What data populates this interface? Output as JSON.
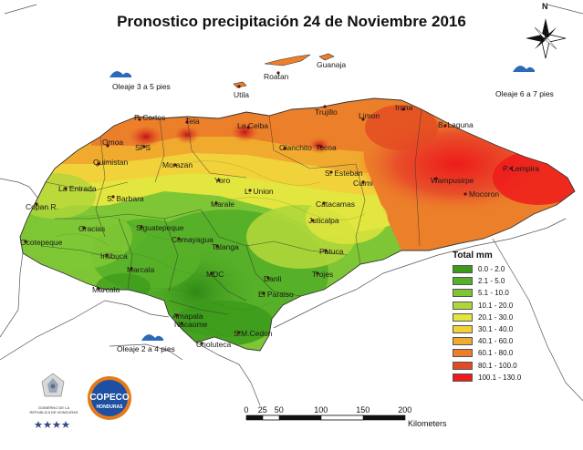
{
  "title": "Pronostico precipitación 24 de Noviembre 2016",
  "wave_labels": {
    "west": "Oleaje 3 a 5 pies",
    "east": "Oleaje 6 a 7 pies",
    "south": "Oleaje 2 a 4 pies"
  },
  "places": {
    "roatan": "Roatan",
    "guanaja": "Guanaja",
    "utila": "Utila",
    "trujillo": "Trujillo",
    "limon": "Limon",
    "pcortes": "P. Cortes",
    "tela": "Tela",
    "laceiba": "La Ceiba",
    "irona": "Irona",
    "blaguna": "B. Laguna",
    "omoa": "Omoa",
    "sps": "SPS",
    "olanchito": "Olanchito",
    "tocoa": "Tocoa",
    "plempira": "P. Lempira",
    "quimistan": "Quimistan",
    "morazan": "Morazan",
    "sesteban": "S. Esteban",
    "culmi": "Culmi",
    "wampusirpe": "Wampusirpe",
    "laentrada": "La Entrada",
    "yoro": "Yoro",
    "lunion": "L. Union",
    "mocoron": "Mocoron",
    "sbarbara": "S. Barbara",
    "marale": "Marale",
    "catacamas": "Catacamas",
    "copanr": "Copan R.",
    "gracias": "Gracias",
    "siguatepeque": "Siguatepeque",
    "juticalpa": "Juticalpa",
    "ocotepeque": "Ocotepeque",
    "comayagua": "Comayagua",
    "patuca": "Patuca",
    "talanga": "Talanga",
    "intibuca": "Intibuca",
    "marcala": "Marcala",
    "mdc": "MDC",
    "danli": "Danli",
    "trojes": "Trojes",
    "marcala2": "Marcala",
    "elparaiso": "El Paraiso",
    "amapala": "Amapala",
    "nacaome": "Nacaome",
    "smcedon": "S.M.Cedon",
    "choluteca": "Choluteca"
  },
  "legend": {
    "title": "Total mm",
    "items": [
      {
        "label": "0.0 - 2.0",
        "color": "#3a9a1a"
      },
      {
        "label": "2.1 - 5.0",
        "color": "#56b028"
      },
      {
        "label": "5.1 - 10.0",
        "color": "#7ec635"
      },
      {
        "label": "10.1 - 20.0",
        "color": "#b0d63a"
      },
      {
        "label": "20.1 - 30.0",
        "color": "#e2e63e"
      },
      {
        "label": "30.1 - 40.0",
        "color": "#f2d23a"
      },
      {
        "label": "40.1 - 60.0",
        "color": "#f0ab2e"
      },
      {
        "label": "60.1 - 80.0",
        "color": "#ec7f2a"
      },
      {
        "label": "80.1 - 100.0",
        "color": "#e44a22"
      },
      {
        "label": "100.1 - 130.0",
        "color": "#ee1b1b"
      }
    ]
  },
  "scale": {
    "ticks": [
      "0",
      "25",
      "50",
      "100",
      "150",
      "200"
    ],
    "unit": "Kilometers"
  },
  "logos": {
    "copeco_top": "COPECO",
    "copeco_bottom": "HONDURAS",
    "gov_lines": [
      "GOBIERNO DE LA",
      "REPUBLICA DE HONDURAS"
    ]
  },
  "compass": {
    "north": "N"
  }
}
